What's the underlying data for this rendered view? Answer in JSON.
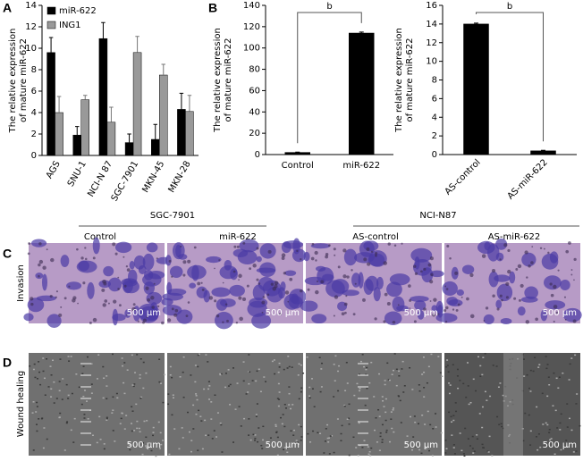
{
  "panel_labels": [
    "A",
    "B",
    "C",
    "D"
  ],
  "chart_data": [
    {
      "type": "bar",
      "y_label": [
        "The relative expression",
        "of mature miR-622"
      ],
      "categories": [
        "AGS",
        "SNU-1",
        "NCI-N 87",
        "SGC-7901",
        "MKN-45",
        "MKN-28"
      ],
      "series": [
        {
          "name": "miR-622",
          "color": "#000000",
          "values": [
            9.6,
            1.9,
            10.9,
            1.2,
            1.5,
            4.3
          ],
          "errors": [
            1.4,
            0.8,
            1.5,
            0.8,
            1.4,
            1.5
          ]
        },
        {
          "name": "ING1",
          "color": "#999999",
          "values": [
            4.0,
            5.2,
            3.1,
            9.6,
            7.5,
            4.1
          ],
          "errors": [
            1.5,
            0.4,
            1.4,
            1.5,
            1.0,
            1.5
          ]
        }
      ],
      "ylim": [
        0,
        14
      ],
      "yticks": [
        0,
        2,
        4,
        6,
        8,
        10,
        12,
        14
      ]
    },
    {
      "type": "bar",
      "y_label": [
        "The relative expression",
        "of mature miR-622"
      ],
      "categories": [
        "Control",
        "miR-622"
      ],
      "series": [
        {
          "color": "#000000",
          "values": [
            2,
            114
          ],
          "errors": [
            0.3,
            1
          ]
        }
      ],
      "ylim": [
        0,
        140
      ],
      "yticks": [
        0,
        20,
        40,
        60,
        80,
        100,
        120,
        140
      ],
      "annotation": "b"
    },
    {
      "type": "bar",
      "y_label": [
        "The relative expression",
        "of mature miR-622"
      ],
      "categories": [
        "AS-control",
        "AS-miR-622"
      ],
      "series": [
        {
          "color": "#000000",
          "values": [
            14,
            0.4
          ],
          "errors": [
            0.1,
            0.05
          ]
        }
      ],
      "ylim": [
        0,
        16
      ],
      "yticks": [
        0,
        2,
        4,
        6,
        8,
        10,
        12,
        14,
        16
      ],
      "annotation": "b"
    }
  ],
  "images": {
    "groups": [
      "SGC-7901",
      "NCI-N87"
    ],
    "columns": [
      "Control",
      "miR-622",
      "AS-control",
      "AS-miR-622"
    ],
    "rows": [
      "Invasion",
      "Wound healing"
    ],
    "scale_bar": "500 μm"
  }
}
